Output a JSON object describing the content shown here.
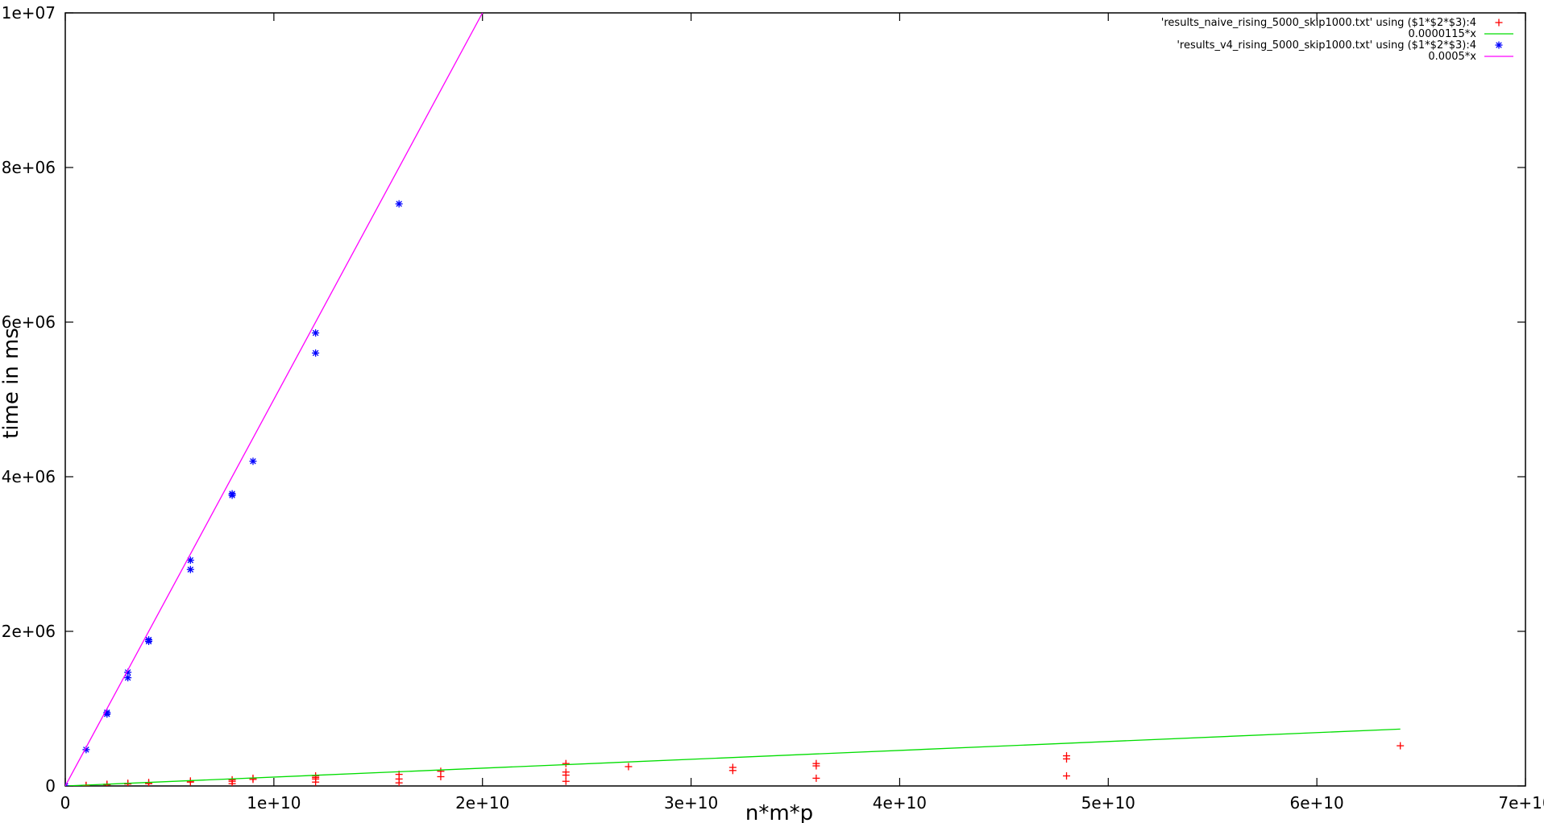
{
  "chart_data": {
    "type": "scatter",
    "title": "",
    "xlabel": "n*m*p",
    "ylabel": "time in ms",
    "xlim": [
      0,
      70000000000
    ],
    "ylim": [
      0,
      10000000
    ],
    "x_ticks": [
      {
        "value": 0,
        "label": "0"
      },
      {
        "value": 10000000000,
        "label": "1e+10"
      },
      {
        "value": 20000000000,
        "label": "2e+10"
      },
      {
        "value": 30000000000,
        "label": "3e+10"
      },
      {
        "value": 40000000000,
        "label": "4e+10"
      },
      {
        "value": 50000000000,
        "label": "5e+10"
      },
      {
        "value": 60000000000,
        "label": "6e+10"
      },
      {
        "value": 70000000000,
        "label": "7e+10"
      }
    ],
    "y_ticks": [
      {
        "value": 0,
        "label": "0"
      },
      {
        "value": 2000000,
        "label": "2e+06"
      },
      {
        "value": 4000000,
        "label": "4e+06"
      },
      {
        "value": 6000000,
        "label": "6e+06"
      },
      {
        "value": 8000000,
        "label": "8e+06"
      },
      {
        "value": 10000000,
        "label": "1e+07"
      }
    ],
    "grid": false,
    "legend_position": "top-right",
    "series": [
      {
        "name": "'results_naive_rising_5000_skip1000.txt' using ($1*$2*$3):4",
        "kind": "points",
        "marker": "plus",
        "color": "#ff0000",
        "points": [
          [
            0,
            0
          ],
          [
            1000000000,
            5000
          ],
          [
            1000000000,
            8000
          ],
          [
            2000000000,
            15000
          ],
          [
            2000000000,
            22000
          ],
          [
            3000000000,
            25000
          ],
          [
            3000000000,
            35000
          ],
          [
            4000000000,
            30000
          ],
          [
            4000000000,
            45000
          ],
          [
            6000000000,
            50000
          ],
          [
            6000000000,
            65000
          ],
          [
            8000000000,
            30000
          ],
          [
            8000000000,
            60000
          ],
          [
            8000000000,
            80000
          ],
          [
            9000000000,
            85000
          ],
          [
            9000000000,
            100000
          ],
          [
            12000000000,
            50000
          ],
          [
            12000000000,
            90000
          ],
          [
            12000000000,
            110000
          ],
          [
            12000000000,
            130000
          ],
          [
            16000000000,
            40000
          ],
          [
            16000000000,
            90000
          ],
          [
            16000000000,
            150000
          ],
          [
            18000000000,
            120000
          ],
          [
            18000000000,
            190000
          ],
          [
            24000000000,
            60000
          ],
          [
            24000000000,
            140000
          ],
          [
            24000000000,
            180000
          ],
          [
            24000000000,
            290000
          ],
          [
            27000000000,
            250000
          ],
          [
            32000000000,
            200000
          ],
          [
            32000000000,
            240000
          ],
          [
            36000000000,
            100000
          ],
          [
            36000000000,
            260000
          ],
          [
            36000000000,
            290000
          ],
          [
            48000000000,
            130000
          ],
          [
            48000000000,
            350000
          ],
          [
            48000000000,
            390000
          ],
          [
            64000000000,
            520000
          ]
        ]
      },
      {
        "name": "0.0000115*x",
        "kind": "line",
        "color": "#00dd00",
        "slope": 1.15e-05,
        "x_range": [
          0,
          64000000000
        ]
      },
      {
        "name": "'results_v4_rising_5000_skip1000.txt' using ($1*$2*$3):4",
        "kind": "points",
        "marker": "star",
        "color": "#0000ff",
        "points": [
          [
            0,
            0
          ],
          [
            1000000000,
            470000
          ],
          [
            2000000000,
            930000
          ],
          [
            2000000000,
            950000
          ],
          [
            3000000000,
            1400000
          ],
          [
            3000000000,
            1470000
          ],
          [
            4000000000,
            1870000
          ],
          [
            4000000000,
            1890000
          ],
          [
            6000000000,
            2800000
          ],
          [
            6000000000,
            2920000
          ],
          [
            8000000000,
            3760000
          ],
          [
            8000000000,
            3780000
          ],
          [
            9000000000,
            4200000
          ],
          [
            12000000000,
            5600000
          ],
          [
            12000000000,
            5860000
          ],
          [
            16000000000,
            7530000
          ]
        ]
      },
      {
        "name": "0.0005*x",
        "kind": "line",
        "color": "#ff00ff",
        "slope": 0.0005,
        "x_range": [
          0,
          20000000000
        ]
      }
    ]
  }
}
